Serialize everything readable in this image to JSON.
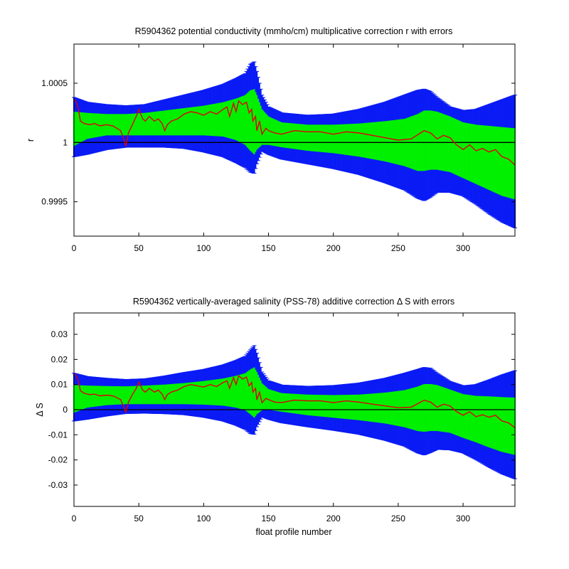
{
  "chart_data": [
    {
      "type": "line",
      "title": "R5904362 potential conductivity (mmho/cm) multiplicative correction r with errors",
      "xlabel": "",
      "ylabel": "r",
      "xlim": [
        0,
        340
      ],
      "ylim": [
        0.99921,
        1.00083
      ],
      "xticks": [
        0,
        50,
        100,
        150,
        200,
        250,
        300
      ],
      "xtick_labels": [
        "0",
        "50",
        "100",
        "150",
        "200",
        "250",
        "300"
      ],
      "yticks": [
        0.9995,
        1,
        1.0005
      ],
      "ytick_labels": [
        "0.9995",
        "1",
        "1.0005"
      ],
      "reference_line": 1,
      "colors": {
        "outer_band": "#0a1bf5",
        "inner_band": "#00f000",
        "correction": "#e00000",
        "reference": "#000000"
      },
      "bands": {
        "x": [
          0,
          10,
          25,
          40,
          55,
          70,
          85,
          100,
          115,
          125,
          132,
          136,
          139,
          141,
          145,
          150,
          160,
          180,
          200,
          220,
          240,
          255,
          265,
          270,
          275,
          280,
          290,
          300,
          310,
          320,
          330,
          340
        ],
        "outer_upper": [
          1.00038,
          1.00034,
          1.00032,
          1.00031,
          1.00032,
          1.00036,
          1.0004,
          1.00044,
          1.00049,
          1.00054,
          1.00058,
          1.00066,
          1.00068,
          1.0006,
          1.0004,
          1.0003,
          1.00025,
          1.00023,
          1.00024,
          1.00028,
          1.00034,
          1.0004,
          1.00044,
          1.00045,
          1.00043,
          1.00038,
          1.0003,
          1.00027,
          1.00028,
          1.00032,
          1.00036,
          1.0004
        ],
        "inner_upper": [
          1.00026,
          1.00025,
          1.00024,
          1.00024,
          1.00025,
          1.00027,
          1.00029,
          1.00031,
          1.00034,
          1.00037,
          1.0004,
          1.00044,
          1.00045,
          1.0004,
          1.00028,
          1.00022,
          1.00017,
          1.00015,
          1.00015,
          1.00016,
          1.00018,
          1.0002,
          1.00024,
          1.00027,
          1.00027,
          1.00026,
          1.00022,
          1.00017,
          1.00015,
          1.00014,
          1.00013,
          1.00012
        ],
        "inner_lower": [
          0.99997,
          1.00003,
          1.00006,
          1.00006,
          1.00006,
          1.00006,
          1.00006,
          1.00006,
          1.00005,
          1.00002,
          0.99998,
          0.99993,
          0.9999,
          0.99994,
          0.99998,
          0.99998,
          0.99996,
          0.99993,
          0.99991,
          0.99988,
          0.99984,
          0.9998,
          0.99976,
          0.99976,
          0.99977,
          0.99977,
          0.99975,
          0.9997,
          0.99965,
          0.9996,
          0.99955,
          0.99952
        ],
        "outer_lower": [
          0.99988,
          0.9999,
          0.99994,
          0.99996,
          0.99996,
          0.99996,
          0.99995,
          0.99992,
          0.99988,
          0.99983,
          0.99979,
          0.99975,
          0.99974,
          0.99982,
          0.99993,
          0.9999,
          0.99986,
          0.99982,
          0.99978,
          0.99973,
          0.99966,
          0.9996,
          0.99953,
          0.99951,
          0.99954,
          0.99958,
          0.99958,
          0.99955,
          0.99948,
          0.9994,
          0.99933,
          0.99928
        ]
      },
      "series": [
        {
          "x": [
            1,
            3,
            5,
            8,
            12,
            16,
            20,
            25,
            30,
            33,
            36,
            38,
            40,
            42,
            45,
            48,
            50,
            53,
            55,
            58,
            62,
            65,
            68,
            70,
            72,
            75,
            80,
            85,
            90,
            95,
            100,
            105,
            110,
            115,
            118,
            120,
            123,
            125,
            127,
            130,
            133,
            135,
            137,
            138,
            140,
            141,
            143,
            145,
            148,
            150,
            155,
            160,
            170,
            180,
            190,
            200,
            210,
            220,
            230,
            240,
            250,
            260,
            270,
            275,
            280,
            285,
            290,
            295,
            300,
            305,
            310,
            315,
            320,
            325,
            330,
            335,
            340
          ],
          "values": [
            1.00036,
            1.0003,
            1.00018,
            1.00016,
            1.00015,
            1.00016,
            1.00014,
            1.00015,
            1.00014,
            1.00012,
            1.0001,
            1.00004,
            0.99997,
            1.00008,
            1.00015,
            1.00022,
            1.00028,
            1.0002,
            1.00018,
            1.00022,
            1.00018,
            1.0002,
            1.00016,
            1.0001,
            1.00015,
            1.00018,
            1.0002,
            1.00024,
            1.00026,
            1.00025,
            1.00023,
            1.00026,
            1.00024,
            1.00028,
            1.0003,
            1.00022,
            1.00033,
            1.00026,
            1.00035,
            1.00032,
            1.00034,
            1.00025,
            1.00028,
            1.00018,
            1.00022,
            1.0001,
            1.00018,
            1.00007,
            1.00012,
            1.0001,
            1.00008,
            1.00007,
            1.0001,
            1.00009,
            1.00009,
            1.00007,
            1.00009,
            1.00008,
            1.00006,
            1.00004,
            1.00002,
            1.00003,
            1.0001,
            1.00008,
            1.00003,
            1.00006,
            1.00004,
            0.99998,
            0.99994,
            0.99998,
            0.99993,
            0.99995,
            0.99992,
            0.99994,
            0.99988,
            0.99986,
            0.99981
          ]
        }
      ]
    },
    {
      "type": "line",
      "title": "R5904362 vertically-averaged salinity (PSS-78) additive correction Δ S with errors",
      "xlabel": "float profile number",
      "ylabel": "Δ S",
      "xlim": [
        0,
        340
      ],
      "ylim": [
        -0.0385,
        0.0385
      ],
      "xticks": [
        0,
        50,
        100,
        150,
        200,
        250,
        300
      ],
      "xtick_labels": [
        "0",
        "50",
        "100",
        "150",
        "200",
        "250",
        "300"
      ],
      "yticks": [
        -0.03,
        -0.02,
        -0.01,
        0,
        0.01,
        0.02,
        0.03
      ],
      "ytick_labels": [
        "-0.03",
        "-0.02",
        "-0.01",
        "0",
        "0.01",
        "0.02",
        "0.03"
      ],
      "reference_line": 0,
      "colors": {
        "outer_band": "#0a1bf5",
        "inner_band": "#00f000",
        "correction": "#e00000",
        "reference": "#000000"
      },
      "bands": {
        "x": [
          0,
          10,
          25,
          40,
          55,
          70,
          85,
          100,
          115,
          125,
          132,
          136,
          139,
          141,
          145,
          150,
          160,
          180,
          200,
          220,
          240,
          255,
          265,
          270,
          275,
          280,
          290,
          300,
          310,
          320,
          330,
          340
        ],
        "outer_upper": [
          0.0145,
          0.0132,
          0.0125,
          0.012,
          0.0123,
          0.0134,
          0.0148,
          0.016,
          0.0178,
          0.0196,
          0.0212,
          0.0238,
          0.0255,
          0.0225,
          0.015,
          0.0115,
          0.0098,
          0.0093,
          0.0096,
          0.0106,
          0.0125,
          0.0145,
          0.016,
          0.0168,
          0.0165,
          0.0145,
          0.0112,
          0.0095,
          0.01,
          0.0118,
          0.0138,
          0.0155
        ],
        "inner_upper": [
          0.0098,
          0.0096,
          0.0094,
          0.0093,
          0.0096,
          0.01,
          0.0106,
          0.0114,
          0.0124,
          0.0135,
          0.0145,
          0.016,
          0.0168,
          0.015,
          0.0105,
          0.0082,
          0.0066,
          0.006,
          0.0058,
          0.006,
          0.0068,
          0.0078,
          0.0092,
          0.0102,
          0.0102,
          0.0098,
          0.008,
          0.0062,
          0.0055,
          0.0053,
          0.005,
          0.0048
        ],
        "inner_lower": [
          -0.0012,
          0.0008,
          0.0018,
          0.0022,
          0.0022,
          0.0022,
          0.0022,
          0.002,
          0.0016,
          0.0008,
          -0.0002,
          -0.0018,
          -0.0032,
          -0.0018,
          -0.0002,
          0.0,
          -0.0008,
          -0.0022,
          -0.0032,
          -0.0042,
          -0.0055,
          -0.007,
          -0.0085,
          -0.0088,
          -0.0085,
          -0.0085,
          -0.0092,
          -0.0112,
          -0.013,
          -0.015,
          -0.0168,
          -0.018
        ],
        "outer_lower": [
          -0.0045,
          -0.0038,
          -0.0025,
          -0.0015,
          -0.0014,
          -0.0016,
          -0.002,
          -0.003,
          -0.0045,
          -0.0062,
          -0.0078,
          -0.0095,
          -0.0098,
          -0.0068,
          -0.0028,
          -0.0038,
          -0.0052,
          -0.0068,
          -0.0082,
          -0.0098,
          -0.0122,
          -0.0145,
          -0.0172,
          -0.018,
          -0.017,
          -0.0158,
          -0.016,
          -0.0172,
          -0.0198,
          -0.0228,
          -0.0255,
          -0.0275
        ]
      },
      "series": [
        {
          "x": [
            1,
            3,
            5,
            8,
            12,
            16,
            20,
            25,
            30,
            33,
            36,
            38,
            40,
            42,
            45,
            48,
            50,
            53,
            55,
            58,
            62,
            65,
            68,
            70,
            72,
            75,
            80,
            85,
            90,
            95,
            100,
            105,
            110,
            115,
            118,
            120,
            123,
            125,
            127,
            130,
            133,
            135,
            137,
            138,
            140,
            141,
            143,
            145,
            148,
            150,
            155,
            160,
            170,
            180,
            190,
            200,
            210,
            220,
            230,
            240,
            250,
            260,
            270,
            275,
            280,
            285,
            290,
            295,
            300,
            305,
            310,
            315,
            320,
            325,
            330,
            335,
            340
          ],
          "values": [
            0.0142,
            0.0122,
            0.0075,
            0.0065,
            0.006,
            0.0062,
            0.0055,
            0.0058,
            0.0055,
            0.0048,
            0.004,
            0.0015,
            -0.001,
            0.003,
            0.006,
            0.0085,
            0.011,
            0.0078,
            0.007,
            0.0085,
            0.007,
            0.0078,
            0.0062,
            0.004,
            0.006,
            0.007,
            0.0078,
            0.0092,
            0.01,
            0.0095,
            0.009,
            0.01,
            0.0092,
            0.0108,
            0.0115,
            0.0085,
            0.0128,
            0.01,
            0.0135,
            0.0122,
            0.013,
            0.0095,
            0.0108,
            0.007,
            0.0085,
            0.004,
            0.007,
            0.0028,
            0.0045,
            0.004,
            0.003,
            0.0028,
            0.0038,
            0.0035,
            0.0035,
            0.0028,
            0.0035,
            0.003,
            0.0022,
            0.0015,
            0.0008,
            0.001,
            0.0038,
            0.003,
            0.001,
            0.0022,
            0.0015,
            -0.0008,
            -0.0022,
            -0.0008,
            -0.0028,
            -0.002,
            -0.003,
            -0.0022,
            -0.0045,
            -0.0052,
            -0.0072
          ]
        }
      ]
    }
  ]
}
